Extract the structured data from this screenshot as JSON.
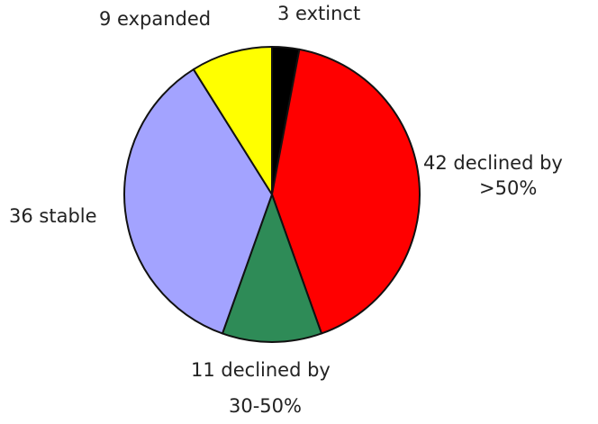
{
  "chart_data": {
    "type": "pie",
    "start": "top, clockwise",
    "slices": [
      {
        "value": 3,
        "color": "#000000",
        "label_lines": [
          "3 extinct"
        ]
      },
      {
        "value": 42,
        "color": "#ff0000",
        "label_lines": [
          "42 declined by",
          ">50%"
        ]
      },
      {
        "value": 11,
        "color": "#2e8b57",
        "label_lines": [
          "11 declined by",
          "30-50%"
        ]
      },
      {
        "value": 36,
        "color": "#a3a3ff",
        "label_lines": [
          "36 stable"
        ]
      },
      {
        "value": 9,
        "color": "#ffff00",
        "label_lines": [
          "9 expanded"
        ]
      }
    ]
  }
}
